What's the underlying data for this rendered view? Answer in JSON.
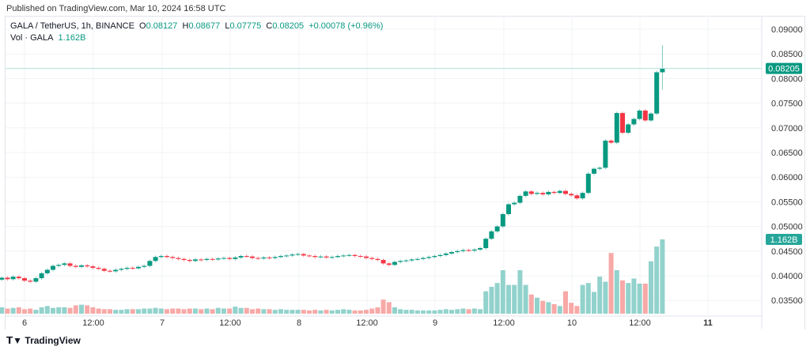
{
  "published": "Published on TradingView.com, Mar 10, 2024 16:58 UTC",
  "legend": {
    "symbol": "GALA / TetherUS, 1h, BINANCE",
    "o_label": "O",
    "open": "0.08127",
    "h_label": "H",
    "high": "0.08677",
    "l_label": "L",
    "low": "0.07775",
    "c_label": "C",
    "close": "0.08205",
    "change": "+0.00078 (+0.96%)",
    "vol_label": "Vol · GALA",
    "vol": "1.162B"
  },
  "footer": {
    "brand": "TradingView"
  },
  "colors": {
    "up": "#089981",
    "down": "#f23645",
    "vol_up": "#92d2cc",
    "vol_down": "#f7a9a7"
  },
  "chart_data": {
    "type": "candlestick",
    "interval": "1h",
    "ylim": [
      0.033,
      0.091
    ],
    "y_ticks": [
      "0.09000",
      "0.08500",
      "0.08000",
      "0.07500",
      "0.07000",
      "0.06500",
      "0.06000",
      "0.05500",
      "0.05000",
      "0.04500",
      "0.04000",
      "0.03500"
    ],
    "x_ticks": [
      "6",
      "12:00",
      "7",
      "12:00",
      "8",
      "12:00",
      "9",
      "12:00",
      "10",
      "12:00",
      "11"
    ],
    "last_price_label": "0.08205",
    "last_volume_label": "1.162B",
    "close": [
      0.0385,
      0.0392,
      0.0396,
      0.0393,
      0.0398,
      0.0395,
      0.039,
      0.0388,
      0.0395,
      0.0405,
      0.0412,
      0.042,
      0.0422,
      0.0425,
      0.042,
      0.0418,
      0.0421,
      0.0419,
      0.0416,
      0.0414,
      0.041,
      0.0409,
      0.0412,
      0.0414,
      0.0416,
      0.0415,
      0.0418,
      0.042,
      0.043,
      0.0438,
      0.044,
      0.0438,
      0.0436,
      0.0434,
      0.0432,
      0.043,
      0.0433,
      0.0432,
      0.0434,
      0.0433,
      0.0435,
      0.0436,
      0.0434,
      0.0437,
      0.044,
      0.0439,
      0.0436,
      0.0435,
      0.0437,
      0.0436,
      0.0438,
      0.044,
      0.0441,
      0.0443,
      0.0444,
      0.0441,
      0.044,
      0.0438,
      0.0439,
      0.0437,
      0.0438,
      0.044,
      0.0441,
      0.0442,
      0.044,
      0.0439,
      0.0436,
      0.0434,
      0.0432,
      0.0425,
      0.0422,
      0.0428,
      0.043,
      0.0431,
      0.0433,
      0.0434,
      0.0436,
      0.0438,
      0.044,
      0.0442,
      0.0445,
      0.0448,
      0.045,
      0.0452,
      0.0451,
      0.0453,
      0.0456,
      0.0475,
      0.049,
      0.05,
      0.0525,
      0.0545,
      0.0548,
      0.0562,
      0.0571,
      0.0566,
      0.0568,
      0.0565,
      0.057,
      0.0568,
      0.0572,
      0.0566,
      0.0563,
      0.0557,
      0.0568,
      0.0607,
      0.0617,
      0.0619,
      0.0674,
      0.067,
      0.073,
      0.069,
      0.0707,
      0.0718,
      0.0735,
      0.0715,
      0.0729,
      0.08127,
      0.08205
    ],
    "last_candle": {
      "open": 0.08127,
      "high": 0.08677,
      "low": 0.07775,
      "close": 0.08205
    },
    "volume_billions": [
      0.16,
      0.12,
      0.1,
      0.08,
      0.09,
      0.1,
      0.07,
      0.08,
      0.06,
      0.1,
      0.12,
      0.09,
      0.1,
      0.1,
      0.09,
      0.13,
      0.14,
      0.13,
      0.1,
      0.08,
      0.07,
      0.07,
      0.06,
      0.06,
      0.07,
      0.07,
      0.07,
      0.08,
      0.08,
      0.09,
      0.08,
      0.07,
      0.08,
      0.08,
      0.07,
      0.08,
      0.08,
      0.07,
      0.08,
      0.07,
      0.09,
      0.08,
      0.08,
      0.11,
      0.09,
      0.09,
      0.07,
      0.08,
      0.07,
      0.07,
      0.06,
      0.07,
      0.06,
      0.06,
      0.06,
      0.06,
      0.05,
      0.06,
      0.05,
      0.06,
      0.05,
      0.06,
      0.07,
      0.06,
      0.05,
      0.05,
      0.06,
      0.08,
      0.1,
      0.22,
      0.18,
      0.1,
      0.07,
      0.06,
      0.06,
      0.05,
      0.05,
      0.05,
      0.05,
      0.06,
      0.07,
      0.06,
      0.07,
      0.08,
      0.07,
      0.08,
      0.07,
      0.35,
      0.42,
      0.48,
      0.68,
      0.45,
      0.45,
      0.68,
      0.45,
      0.3,
      0.25,
      0.2,
      0.18,
      0.15,
      0.12,
      0.35,
      0.17,
      0.12,
      0.45,
      0.48,
      0.34,
      0.58,
      0.5,
      0.95,
      0.68,
      0.52,
      0.48,
      0.55,
      0.47,
      0.47,
      0.82,
      1.05,
      1.162
    ]
  }
}
